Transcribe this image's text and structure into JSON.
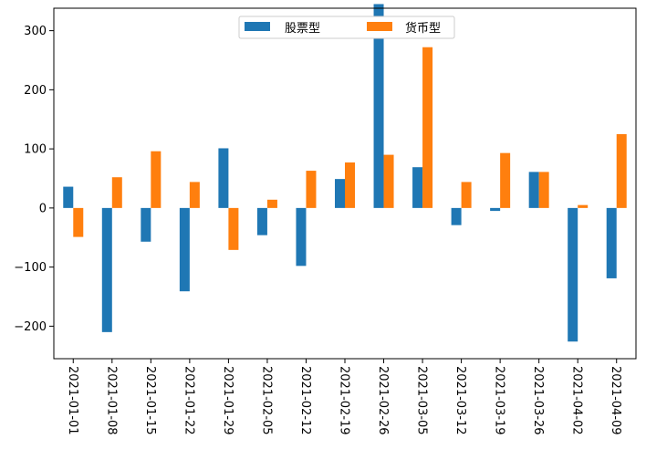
{
  "chart_data": {
    "type": "bar",
    "categories": [
      "2021-01-01",
      "2021-01-08",
      "2021-01-15",
      "2021-01-22",
      "2021-01-29",
      "2021-02-05",
      "2021-02-12",
      "2021-02-19",
      "2021-02-26",
      "2021-03-05",
      "2021-03-12",
      "2021-03-19",
      "2021-03-26",
      "2021-04-02",
      "2021-04-09"
    ],
    "series": [
      {
        "name": "股票型",
        "color": "#1f77b4",
        "values": [
          36,
          -210,
          -57,
          -141,
          101,
          -46,
          -98,
          49,
          345,
          69,
          -29,
          -5,
          61,
          -226,
          -119
        ]
      },
      {
        "name": "货币型",
        "color": "#ff7f0e",
        "values": [
          -49,
          52,
          96,
          44,
          -71,
          14,
          63,
          77,
          90,
          272,
          44,
          93,
          61,
          5,
          125
        ]
      }
    ],
    "ylim": [
      -255,
      338
    ],
    "yticks": [
      -200,
      -100,
      0,
      100,
      200,
      300
    ],
    "title": "",
    "xlabel": "",
    "ylabel": "",
    "legend_position": "top-center",
    "grid": false
  }
}
